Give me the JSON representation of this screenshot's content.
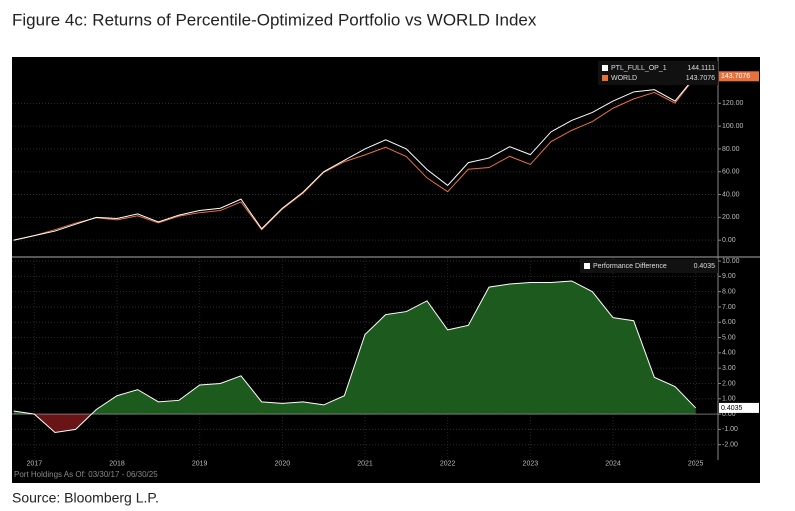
{
  "title": "Figure 4c: Returns of Percentile-Optimized Portfolio vs WORLD Index",
  "source": "Source: Bloomberg L.P.",
  "footnote": "Port Holdings As Of: 03/30/17 - 06/30/25",
  "chart_data": [
    {
      "type": "line",
      "x": [
        2017.25,
        2017.5,
        2017.75,
        2018.0,
        2018.25,
        2018.5,
        2018.75,
        2019.0,
        2019.25,
        2019.5,
        2019.75,
        2020.0,
        2020.25,
        2020.5,
        2020.75,
        2021.0,
        2021.25,
        2021.5,
        2021.75,
        2022.0,
        2022.25,
        2022.5,
        2022.75,
        2023.0,
        2023.25,
        2023.5,
        2023.75,
        2024.0,
        2024.25,
        2024.5,
        2024.75,
        2025.0,
        2025.25,
        2025.5
      ],
      "series": [
        {
          "name": "PTL_FULL_OP_1",
          "color": "#ffffff",
          "values": [
            0,
            4,
            8,
            14,
            20,
            19,
            23,
            16,
            22,
            26,
            28,
            36,
            10,
            28,
            42,
            60,
            70,
            80,
            88,
            80,
            62,
            48,
            68,
            72,
            82,
            75,
            95,
            105,
            112,
            122,
            130,
            132,
            122,
            144.1111
          ]
        },
        {
          "name": "WORLD",
          "color": "#e8703a",
          "values": [
            -0.2,
            4,
            9.2,
            15,
            19.7,
            17.8,
            21.4,
            15.2,
            21.1,
            24.1,
            26,
            33.5,
            9.2,
            27.3,
            41.2,
            59.4,
            68.8,
            74.8,
            81.5,
            73.3,
            54.6,
            42.5,
            62.2,
            63.7,
            73.5,
            66.4,
            86.4,
            96.3,
            104,
            115.7,
            123.9,
            129.6,
            120.2,
            143.7076
          ]
        }
      ],
      "xlim": [
        2017.23,
        2025.77
      ],
      "ylim": [
        -13,
        158
      ],
      "yticks": [
        {
          "value": 0,
          "label": "0.00"
        },
        {
          "value": 20,
          "label": "20.00"
        },
        {
          "value": 40,
          "label": "40.00"
        },
        {
          "value": 60,
          "label": "60.00"
        },
        {
          "value": 80,
          "label": "80.00"
        },
        {
          "value": 100,
          "label": "100.00"
        },
        {
          "value": 120,
          "label": "120.00"
        }
      ],
      "grid": true
    },
    {
      "type": "area",
      "x": [
        2017.25,
        2017.5,
        2017.75,
        2018.0,
        2018.25,
        2018.5,
        2018.75,
        2019.0,
        2019.25,
        2019.5,
        2019.75,
        2020.0,
        2020.25,
        2020.5,
        2020.75,
        2021.0,
        2021.25,
        2021.5,
        2021.75,
        2022.0,
        2022.25,
        2022.5,
        2022.75,
        2023.0,
        2023.25,
        2023.5,
        2023.75,
        2024.0,
        2024.25,
        2024.5,
        2024.75,
        2025.0,
        2025.25,
        2025.5
      ],
      "series": [
        {
          "name": "Performance Difference",
          "color": "#ffffff",
          "values": [
            0.2,
            0,
            -1.2,
            -1.0,
            0.3,
            1.2,
            1.6,
            0.8,
            0.9,
            1.9,
            2.0,
            2.5,
            0.8,
            0.7,
            0.8,
            0.6,
            1.2,
            5.2,
            6.5,
            6.7,
            7.4,
            5.5,
            5.8,
            8.3,
            8.5,
            8.6,
            8.6,
            8.7,
            8.0,
            6.3,
            6.1,
            2.4,
            1.8,
            0.4035
          ]
        }
      ],
      "positive_color": "#1d5a1d",
      "negative_color": "#6a1515",
      "xlim": [
        2017.23,
        2025.77
      ],
      "ylim": [
        -3,
        10.2
      ],
      "xticks": [
        {
          "value": 2017.5,
          "label": "2017"
        },
        {
          "value": 2018.5,
          "label": "2018"
        },
        {
          "value": 2019.5,
          "label": "2019"
        },
        {
          "value": 2020.5,
          "label": "2020"
        },
        {
          "value": 2021.5,
          "label": "2021"
        },
        {
          "value": 2022.5,
          "label": "2022"
        },
        {
          "value": 2023.5,
          "label": "2023"
        },
        {
          "value": 2024.5,
          "label": "2024"
        },
        {
          "value": 2025.5,
          "label": "2025"
        }
      ],
      "yticks": [
        {
          "value": -2,
          "label": "-2.00"
        },
        {
          "value": -1,
          "label": "-1.00"
        },
        {
          "value": 0,
          "label": "0.00"
        },
        {
          "value": 1,
          "label": "1.00"
        },
        {
          "value": 2,
          "label": "2.00"
        },
        {
          "value": 3,
          "label": "3.00"
        },
        {
          "value": 4,
          "label": "4.00"
        },
        {
          "value": 5,
          "label": "5.00"
        },
        {
          "value": 6,
          "label": "6.00"
        },
        {
          "value": 7,
          "label": "7.00"
        },
        {
          "value": 8,
          "label": "8.00"
        },
        {
          "value": 9,
          "label": "9.00"
        },
        {
          "value": 10,
          "label": "10.00"
        }
      ],
      "grid": true
    }
  ]
}
